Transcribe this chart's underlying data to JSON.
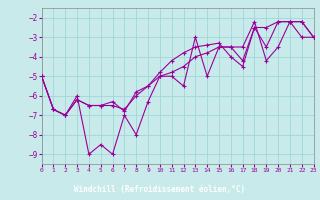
{
  "xlabel": "Windchill (Refroidissement éolien,°C)",
  "bg_color": "#c8eaea",
  "grid_color": "#a0d8d8",
  "line_color": "#990099",
  "label_bg": "#990099",
  "label_fg": "#ffffff",
  "xlim": [
    0,
    23
  ],
  "ylim": [
    -9.5,
    -1.5
  ],
  "yticks": [
    -9,
    -8,
    -7,
    -6,
    -5,
    -4,
    -3,
    -2
  ],
  "xticks": [
    0,
    1,
    2,
    3,
    4,
    5,
    6,
    7,
    8,
    9,
    10,
    11,
    12,
    13,
    14,
    15,
    16,
    17,
    18,
    19,
    20,
    21,
    22,
    23
  ],
  "line1_x": [
    0,
    1,
    2,
    3,
    4,
    5,
    6,
    7,
    8,
    9,
    10,
    11,
    12,
    13,
    14,
    15,
    16,
    17,
    18,
    19,
    20,
    21,
    22,
    23
  ],
  "line1_y": [
    -5.0,
    -6.7,
    -7.0,
    -6.0,
    -9.0,
    -8.5,
    -9.0,
    -7.0,
    -8.0,
    -6.3,
    -5.0,
    -5.0,
    -5.5,
    -3.0,
    -5.0,
    -3.5,
    -3.5,
    -3.5,
    -2.2,
    -4.2,
    -3.5,
    -2.2,
    -2.2,
    -3.0
  ],
  "line2_x": [
    0,
    1,
    2,
    3,
    4,
    5,
    6,
    7,
    8,
    9,
    10,
    11,
    12,
    13,
    14,
    15,
    16,
    17,
    18,
    19,
    20,
    21,
    22,
    23
  ],
  "line2_y": [
    -5.0,
    -6.7,
    -7.0,
    -6.2,
    -6.5,
    -6.5,
    -6.5,
    -6.7,
    -6.0,
    -5.5,
    -5.0,
    -4.8,
    -4.5,
    -4.0,
    -3.8,
    -3.5,
    -3.5,
    -4.2,
    -2.5,
    -3.5,
    -2.2,
    -2.2,
    -2.2,
    -3.0
  ],
  "line3_x": [
    0,
    1,
    2,
    3,
    4,
    5,
    6,
    7,
    8,
    9,
    10,
    11,
    12,
    13,
    14,
    15,
    16,
    17,
    18,
    19,
    20,
    21,
    22,
    23
  ],
  "line3_y": [
    -5.0,
    -6.7,
    -7.0,
    -6.2,
    -6.5,
    -6.5,
    -6.3,
    -6.8,
    -5.8,
    -5.5,
    -4.8,
    -4.2,
    -3.8,
    -3.5,
    -3.4,
    -3.3,
    -4.0,
    -4.5,
    -2.5,
    -2.5,
    -2.2,
    -2.2,
    -3.0,
    -3.0
  ]
}
